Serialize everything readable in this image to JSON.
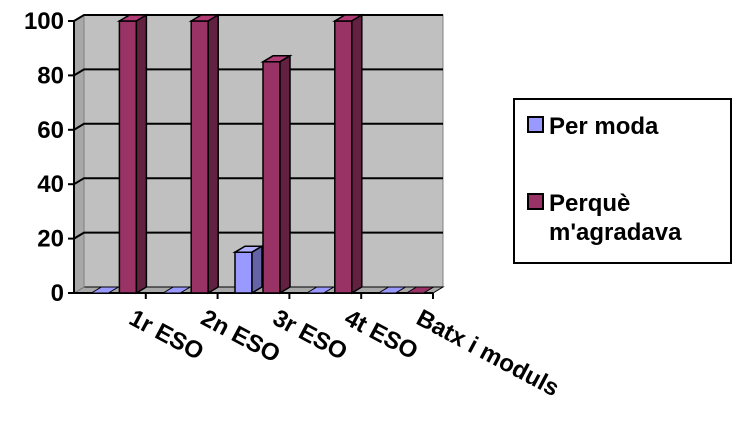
{
  "chart_data": {
    "type": "bar",
    "categories": [
      "1r ESO",
      "2n ESO",
      "3r ESO",
      "4t ESO",
      "Batx i moduls"
    ],
    "series": [
      {
        "name": "Per moda",
        "values": [
          0,
          0,
          15,
          0,
          0
        ],
        "color": "#9999ff"
      },
      {
        "name": "Perquè m'agradava",
        "values": [
          100,
          100,
          85,
          100,
          0
        ],
        "color": "#993366"
      }
    ],
    "ylim": [
      0,
      100
    ],
    "yticks": [
      "0",
      "20",
      "40",
      "60",
      "80",
      "100"
    ],
    "title": "",
    "xlabel": "",
    "ylabel": "",
    "grid": true,
    "legend_placement": "right",
    "three_d": true,
    "wall_color": "#c0c0c0"
  },
  "legend": {
    "items": [
      {
        "label": "Per moda",
        "color": "#9999ff"
      },
      {
        "label": "Perquè\nm'agradava",
        "color": "#993366"
      }
    ]
  }
}
